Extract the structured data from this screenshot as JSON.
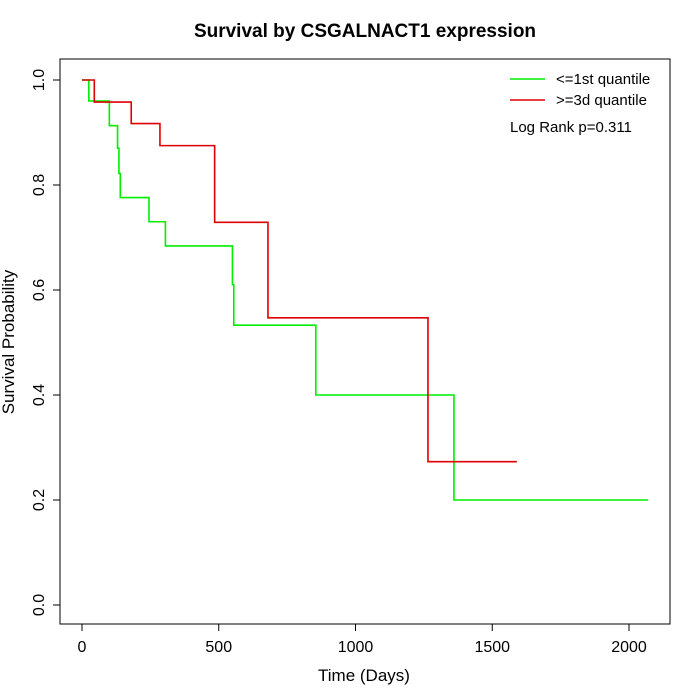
{
  "chart_data": {
    "type": "line",
    "title": "Survival by CSGALNACT1 expression",
    "xlabel": "Time (Days)",
    "ylabel": "Survival Probability",
    "xlim": [
      0,
      2070
    ],
    "ylim": [
      0,
      1.0
    ],
    "x_ticks": [
      "0",
      "500",
      "1000",
      "1500",
      "2000"
    ],
    "y_ticks": [
      "0.0",
      "0.2",
      "0.4",
      "0.6",
      "0.8",
      "1.0"
    ],
    "legend_position": "top-right",
    "annotation": "Log Rank p=0.311",
    "series": [
      {
        "name": "<=1st quantile",
        "color": "#00ee00",
        "step": true,
        "x": [
          0,
          25,
          100,
          130,
          135,
          140,
          245,
          305,
          550,
          555,
          855,
          1360,
          2070
        ],
        "y": [
          1.0,
          0.96,
          0.913,
          0.87,
          0.822,
          0.776,
          0.73,
          0.684,
          0.61,
          0.533,
          0.4,
          0.2,
          0.2
        ]
      },
      {
        "name": ">=3d quantile",
        "color": "#dd0000",
        "step": true,
        "x": [
          0,
          45,
          180,
          285,
          485,
          680,
          1265,
          1590
        ],
        "y": [
          1.0,
          0.958,
          0.917,
          0.875,
          0.729,
          0.547,
          0.273,
          0.273
        ]
      }
    ]
  }
}
